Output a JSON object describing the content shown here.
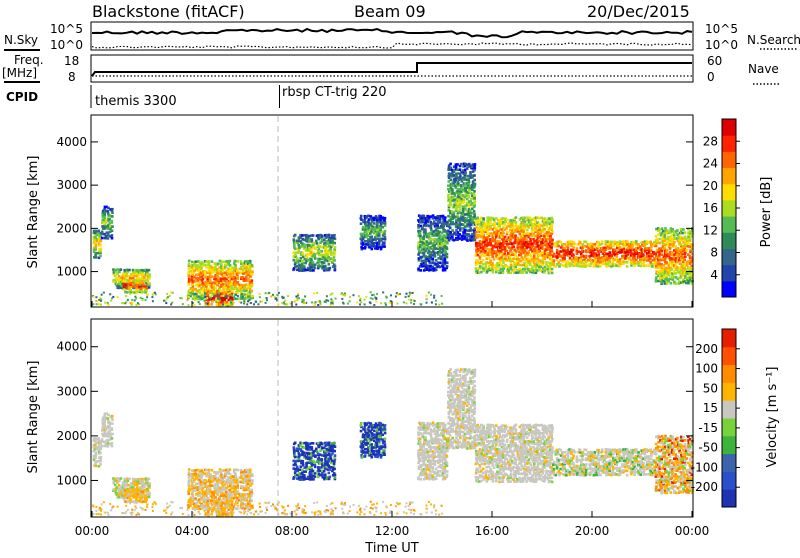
{
  "header": {
    "station": "Blackstone (fitACF)",
    "beam": "Beam 09",
    "date": "20/Dec/2015"
  },
  "status_panels": {
    "nsky_label": "N.Sky",
    "nsky_ticks": [
      "10^5",
      "10^0"
    ],
    "nsearch_label": "N.Search",
    "nsearch_ticks": [
      "10^5",
      "10^0"
    ],
    "freq_label": "Freq.",
    "freq_unit": "[MHz]",
    "freq_ticks": [
      "18",
      "8"
    ],
    "nave_label": "Nave",
    "nave_ticks": [
      "60",
      "0"
    ],
    "cpid_label": "CPID",
    "cpid_modes": [
      {
        "name": "themis 3300",
        "start_hour": 0
      },
      {
        "name": "rbsp CT-trig 220",
        "start_hour": 7.5
      }
    ],
    "freq_step_hour": 13.0
  },
  "chart_data": [
    {
      "type": "heatmap",
      "name": "power",
      "ylabel": "Slant Range [km]",
      "ylim": [
        180,
        4600
      ],
      "yticks": [
        1000,
        2000,
        3000,
        4000
      ],
      "xlim": [
        0,
        24
      ],
      "colorbar": {
        "label": "Power [dB]",
        "ticks": [
          "28",
          "24",
          "20",
          "16",
          "12",
          "8",
          "4"
        ],
        "colors": [
          "#0000ff",
          "#2244aa",
          "#336688",
          "#2e8b57",
          "#55bb55",
          "#aadd22",
          "#ffdd00",
          "#ffa500",
          "#ff6600",
          "#ff2200",
          "#dd0000"
        ]
      }
    },
    {
      "type": "heatmap",
      "name": "velocity",
      "ylabel": "Slant Range [km]",
      "ylim": [
        180,
        4600
      ],
      "yticks": [
        1000,
        2000,
        3000,
        4000
      ],
      "xlim": [
        0,
        24
      ],
      "xlabel": "Time UT",
      "xticks": [
        "00:00",
        "04:00",
        "08:00",
        "12:00",
        "16:00",
        "20:00",
        "00:00"
      ],
      "colorbar": {
        "label": "Velocity [m s⁻¹]",
        "ticks": [
          "200",
          "100",
          "50",
          "15",
          "-15",
          "-50",
          "-100",
          "-200"
        ],
        "colors": [
          "#1e32b4",
          "#2850c8",
          "#3c64aa",
          "#3cb43c",
          "#78d23c",
          "#c8c8c0",
          "#ffb400",
          "#ff8c00",
          "#ff5000",
          "#e61e00"
        ]
      }
    }
  ],
  "scatter_regions": [
    {
      "t0": 0.0,
      "t1": 0.35,
      "r0": 1300,
      "r1": 1950,
      "pmean": 14,
      "v": "gray"
    },
    {
      "t0": 0.35,
      "t1": 0.8,
      "r0": 1750,
      "r1": 2500,
      "pmean": 8,
      "v": "gray"
    },
    {
      "t0": 0.8,
      "t1": 2.3,
      "r0": 600,
      "r1": 1050,
      "pmean": 14,
      "v": "mix"
    },
    {
      "t0": 1.2,
      "t1": 2.2,
      "r0": 500,
      "r1": 800,
      "pmean": 20,
      "v": "orange"
    },
    {
      "t0": 3.8,
      "t1": 6.4,
      "r0": 350,
      "r1": 1250,
      "pmean": 18,
      "v": "orangegray"
    },
    {
      "t0": 4.5,
      "t1": 5.6,
      "r0": 180,
      "r1": 550,
      "pmean": 24,
      "v": "orange"
    },
    {
      "t0": 8.0,
      "t1": 9.7,
      "r0": 1000,
      "r1": 1850,
      "pmean": 10,
      "v": "blue"
    },
    {
      "t0": 10.7,
      "t1": 11.7,
      "r0": 1500,
      "r1": 2300,
      "pmean": 6,
      "v": "blue"
    },
    {
      "t0": 13.0,
      "t1": 14.2,
      "r0": 1000,
      "r1": 2300,
      "pmean": 6,
      "v": "gray"
    },
    {
      "t0": 14.2,
      "t1": 15.3,
      "r0": 1700,
      "r1": 3500,
      "pmean": 8,
      "v": "gray"
    },
    {
      "t0": 15.3,
      "t1": 18.4,
      "r0": 950,
      "r1": 2250,
      "pmean": 20,
      "v": "gray"
    },
    {
      "t0": 18.4,
      "t1": 22.5,
      "r0": 1100,
      "r1": 1700,
      "pmean": 22,
      "v": "grayorange"
    },
    {
      "t0": 22.5,
      "t1": 24.0,
      "r0": 700,
      "r1": 2000,
      "pmean": 18,
      "v": "orangered"
    }
  ]
}
